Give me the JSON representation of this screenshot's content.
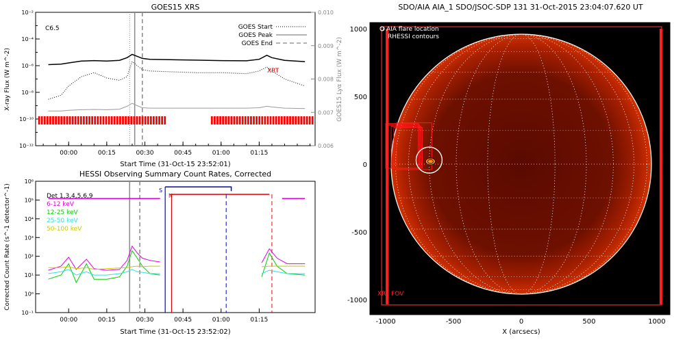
{
  "chart_data": [
    {
      "type": "line",
      "title": "GOES15 XRS",
      "xlabel": "Start Time (31-Oct-15 23:52:01)",
      "ylabel": "X-ray Flux (W m^-2)",
      "ylabel_right": "GOES15 Lyα Flux (W m^-2)",
      "x_ticks": [
        "00:00",
        "00:15",
        "00:30",
        "00:45",
        "01:00",
        "01:15"
      ],
      "ylim": [
        1e-12,
        0.01
      ],
      "ylog": true,
      "y_ticks": [
        "10⁻²",
        "10⁻⁴",
        "10⁻⁶",
        "10⁻⁸",
        "10⁻¹⁰",
        "10⁻¹²"
      ],
      "y_ticks_right": [
        "0.010",
        "0.009",
        "0.008",
        "0.007",
        "0.006"
      ],
      "flare_class": "C6.5",
      "legend": [
        {
          "label": "GOES Start",
          "style": "dotted"
        },
        {
          "label": "GOES Peak",
          "style": "solid"
        },
        {
          "label": "GOES End",
          "style": "dashed"
        }
      ],
      "annotation": "XRT",
      "x_minutes": [
        -8,
        -3,
        0,
        5,
        10,
        15,
        20,
        23,
        25,
        27,
        29,
        32,
        40,
        50,
        60,
        70,
        75,
        78,
        80,
        85,
        93
      ],
      "series": [
        {
          "values": [
            1.2e-06,
            1.3e-06,
            1.6e-06,
            2.2e-06,
            2.4e-06,
            2.2e-06,
            2.5e-06,
            4e-06,
            7e-06,
            5e-06,
            3.5e-06,
            3e-06,
            2.8e-06,
            2.6e-06,
            2.4e-06,
            2.3e-06,
            3e-06,
            6e-06,
            4e-06,
            2.5e-06,
            2e-06
          ],
          "color": "#000000",
          "style": "solid"
        },
        {
          "values": [
            3e-09,
            6e-09,
            3e-08,
            1.5e-07,
            3e-07,
            1.2e-07,
            8e-08,
            1.5e-07,
            2e-06,
            1e-06,
            5e-07,
            4e-07,
            3.5e-07,
            3e-07,
            3e-07,
            2.5e-07,
            4e-07,
            8e-07,
            4e-07,
            1e-07,
            3e-08
          ],
          "color": "#000000",
          "style": "dotted"
        },
        {
          "values": [
            4e-10,
            4e-10,
            4.5e-10,
            5e-10,
            5.2e-10,
            5e-10,
            5.5e-10,
            9e-10,
            1.5e-09,
            1e-09,
            7e-10,
            6.5e-10,
            6.5e-10,
            6.5e-10,
            6.5e-10,
            6.5e-10,
            7e-10,
            9e-10,
            8e-10,
            6.5e-10,
            6e-10
          ],
          "color": "#999999",
          "style": "solid"
        }
      ],
      "events_minutes": {
        "start": 24,
        "peak": 26,
        "end": 29
      }
    },
    {
      "type": "line",
      "title": "HESSI Observing Summary Count Rates, Corrected",
      "xlabel": "Start Time (31-Oct-15 23:52:02)",
      "ylabel": "Corrected Count Rate (s^-1 detector^-1)",
      "x_ticks": [
        "00:00",
        "00:15",
        "00:30",
        "00:45",
        "01:00",
        "01:15"
      ],
      "ylim": [
        0.1,
        1000000.0
      ],
      "ylog": true,
      "y_ticks": [
        "10⁶",
        "10⁵",
        "10⁴",
        "10³",
        "10²",
        "10¹",
        "10⁰",
        "10⁻¹"
      ],
      "detectors": "Det 1,3,4,5,6,9",
      "legend": [
        {
          "label": "6-12 keV",
          "color": "#e000e0"
        },
        {
          "label": "12-25 keV",
          "color": "#00d000"
        },
        {
          "label": "25-50 keV",
          "color": "#30e0e0"
        },
        {
          "label": "50-100 keV",
          "color": "#c8c800"
        }
      ],
      "markers": [
        "S",
        "N"
      ],
      "x_minutes": [
        -8,
        -3,
        0,
        3,
        7,
        10,
        15,
        20,
        23,
        25,
        27,
        29,
        32,
        36,
        72,
        76,
        79,
        82,
        86,
        93
      ],
      "series": [
        {
          "values": [
            18,
            30,
            90,
            20,
            70,
            22,
            18,
            20,
            60,
            350,
            150,
            80,
            60,
            50,
            null,
            45,
            250,
            80,
            40,
            40
          ],
          "color": "#e000e0"
        },
        {
          "values": [
            6,
            10,
            40,
            4,
            40,
            6,
            6,
            8,
            30,
            200,
            80,
            30,
            12,
            10,
            null,
            8,
            150,
            30,
            12,
            10
          ],
          "color": "#00d000"
        },
        {
          "values": [
            12,
            15,
            20,
            10,
            15,
            10,
            10,
            12,
            15,
            20,
            15,
            14,
            12,
            12,
            null,
            12,
            18,
            15,
            12,
            12
          ],
          "color": "#30e0e0"
        },
        {
          "values": [
            25,
            25,
            28,
            22,
            25,
            20,
            22,
            24,
            25,
            28,
            30,
            28,
            30,
            30,
            null,
            28,
            30,
            30,
            30,
            30
          ],
          "color": "#c8c800"
        }
      ]
    },
    {
      "type": "image",
      "title": "SDO/AIA AIA_1 SDO/JSOC-SDP 131 31-Oct-2015 23:04:07.620 UT",
      "xlabel": "X (arcsecs)",
      "x_ticks": [
        "-1000",
        "-500",
        "0",
        "500",
        "1000"
      ],
      "y_ticks": [
        "1000",
        "500",
        "0",
        "-500",
        "-1000"
      ],
      "legend": [
        "O AIA flare location",
        "RHESSI contours"
      ],
      "fov_label": "XRT FOV",
      "xlim": [
        -1100,
        1100
      ],
      "ylim": [
        -1100,
        1050
      ],
      "flare_location": {
        "x": -680,
        "y": 30
      }
    }
  ],
  "colors": {
    "flag_red": "#ff0000",
    "event_grey": "#888888",
    "aia_bg": "#000000",
    "aia_disk": "#7a1000"
  }
}
